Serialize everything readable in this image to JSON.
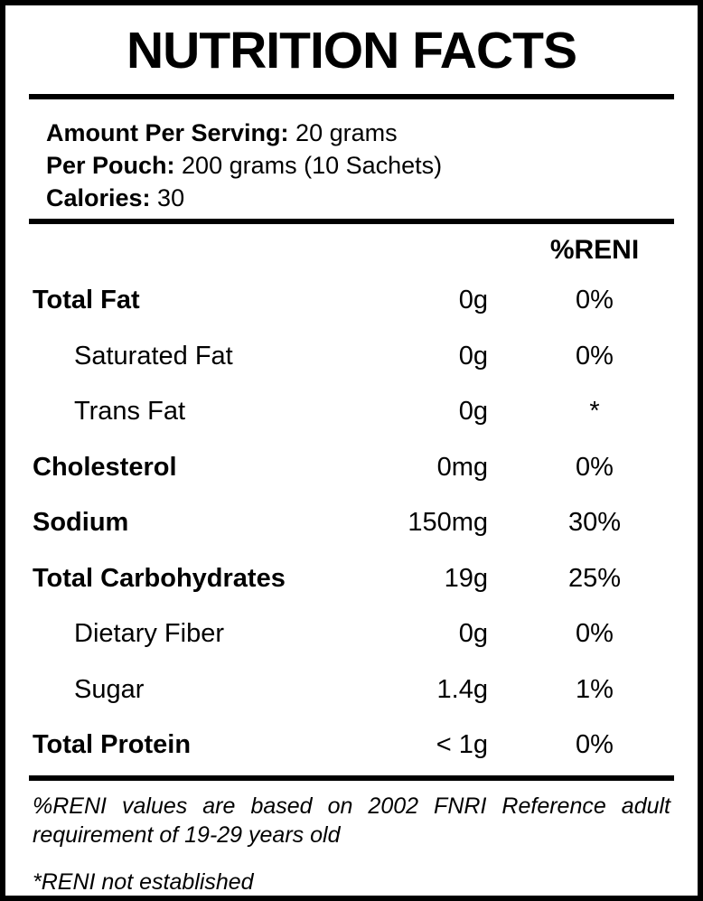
{
  "title": "NUTRITION FACTS",
  "serving_info": {
    "lines": [
      {
        "label": "Amount Per Serving:",
        "value": "20 grams"
      },
      {
        "label": "Per Pouch:",
        "value": "200 grams (10 Sachets)"
      },
      {
        "label": "Calories:",
        "value": "30"
      }
    ]
  },
  "table": {
    "percent_header": "%RENI",
    "rows": [
      {
        "name": "Total Fat",
        "amount": "0g",
        "reni": "0%",
        "bold": true,
        "indent": false
      },
      {
        "name": "Saturated Fat",
        "amount": "0g",
        "reni": "0%",
        "bold": false,
        "indent": true
      },
      {
        "name": "Trans Fat",
        "amount": "0g",
        "reni": "*",
        "bold": false,
        "indent": true
      },
      {
        "name": "Cholesterol",
        "amount": "0mg",
        "reni": "0%",
        "bold": true,
        "indent": false
      },
      {
        "name": "Sodium",
        "amount": "150mg",
        "reni": "30%",
        "bold": true,
        "indent": false
      },
      {
        "name": "Total Carbohydrates",
        "amount": "19g",
        "reni": "25%",
        "bold": true,
        "indent": false
      },
      {
        "name": "Dietary Fiber",
        "amount": "0g",
        "reni": "0%",
        "bold": false,
        "indent": true
      },
      {
        "name": "Sugar",
        "amount": "1.4g",
        "reni": "1%",
        "bold": false,
        "indent": true
      },
      {
        "name": "Total Protein",
        "amount": "< 1g",
        "reni": "0%",
        "bold": true,
        "indent": false
      }
    ]
  },
  "footnotes": {
    "reni_basis": "%RENI values are based on 2002 FNRI Reference adult requirement of 19-29 years old",
    "not_established": "*RENI not established"
  },
  "colors": {
    "text": "#000000",
    "background": "#ffffff",
    "border": "#000000"
  }
}
